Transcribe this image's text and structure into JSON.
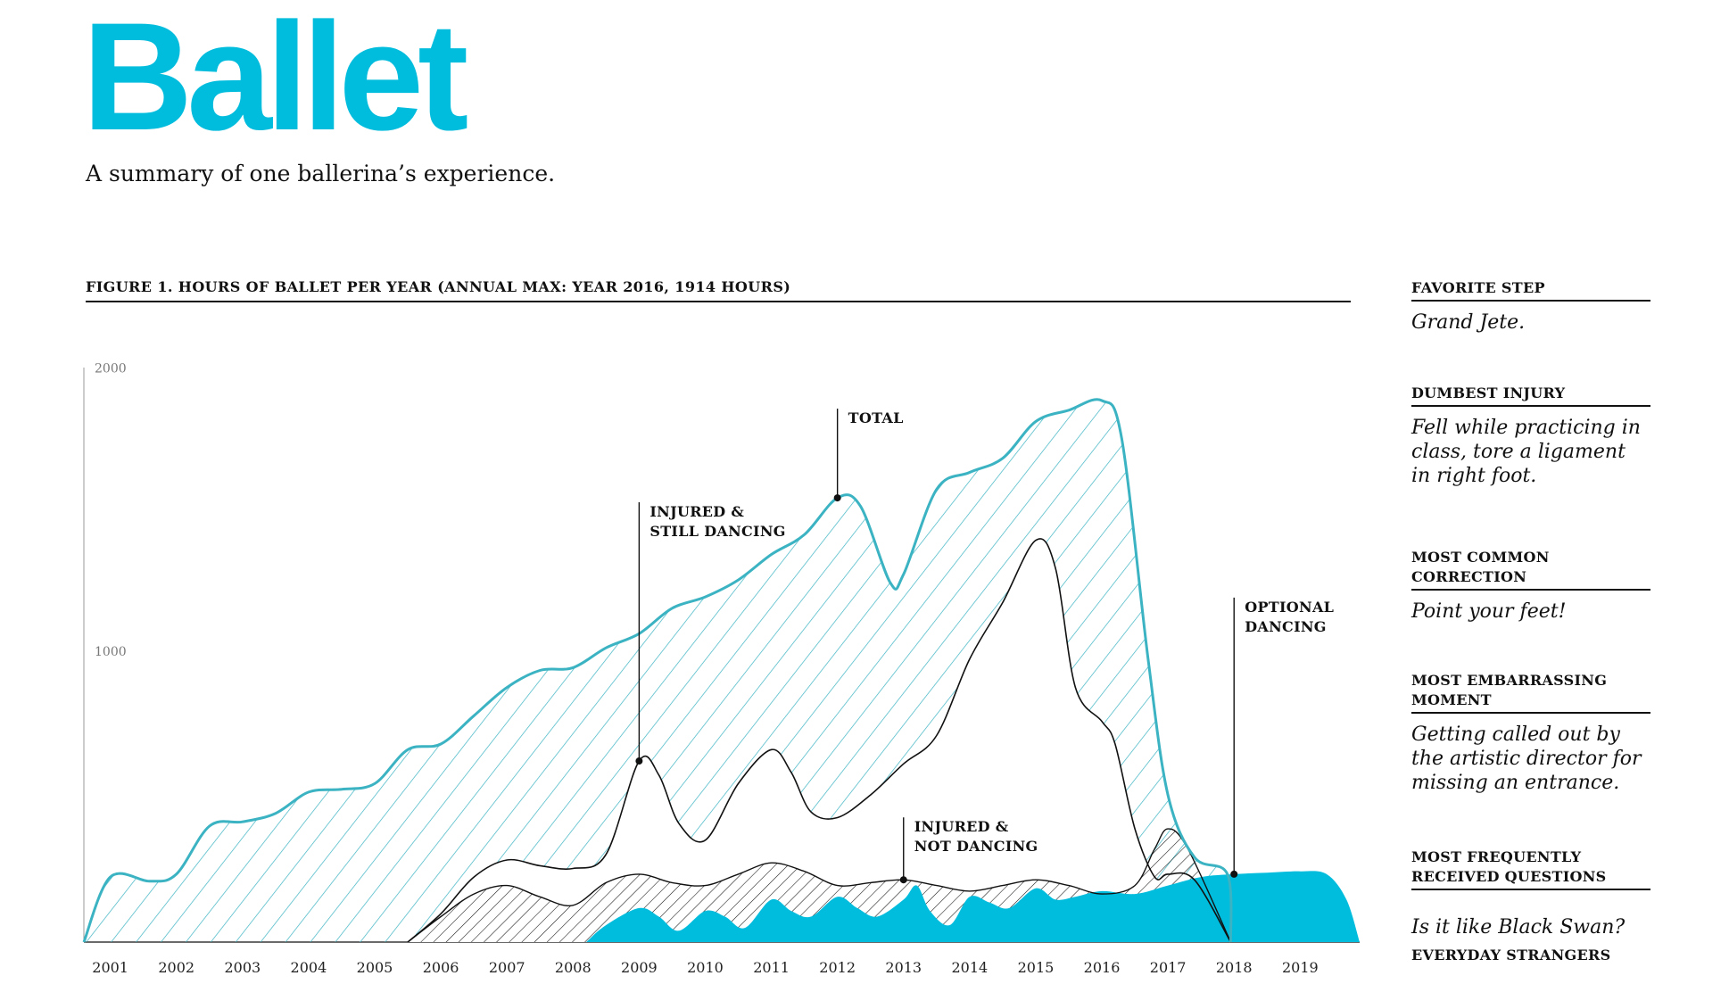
{
  "header": {
    "title": "Ballet",
    "subtitle": "A summary of one ballerina’s experience."
  },
  "figure": {
    "title": "FIGURE 1. HOURS OF BALLET PER YEAR (ANNUAL MAX: YEAR 2016, 1914 HOURS)"
  },
  "colors": {
    "accent": "#00bcdd",
    "total_line": "#3bb3c2",
    "ink": "#111111"
  },
  "chart_data": {
    "type": "area",
    "title": "FIGURE 1. HOURS OF BALLET PER YEAR (ANNUAL MAX: YEAR 2016, 1914 HOURS)",
    "x_ticks": [
      "2001",
      "2002",
      "2003",
      "2004",
      "2005",
      "2006",
      "2007",
      "2008",
      "2009",
      "2010",
      "2011",
      "2012",
      "2013",
      "2014",
      "2015",
      "2016",
      "2017",
      "2018",
      "2019"
    ],
    "y_ticks": [
      {
        "value": 1000,
        "label": "1000"
      },
      {
        "value": 2000,
        "label": "2000"
      }
    ],
    "ylim": [
      0,
      2100
    ],
    "xlim": [
      2000.6,
      2019.9
    ],
    "series": [
      {
        "name": "TOTAL",
        "style": "hatched-area",
        "points": [
          [
            2000.6,
            0
          ],
          [
            2001,
            230
          ],
          [
            2001.6,
            215
          ],
          [
            2002,
            240
          ],
          [
            2002.5,
            410
          ],
          [
            2003,
            425
          ],
          [
            2003.5,
            455
          ],
          [
            2004,
            530
          ],
          [
            2004.5,
            540
          ],
          [
            2005,
            560
          ],
          [
            2005.5,
            680
          ],
          [
            2006,
            700
          ],
          [
            2006.5,
            800
          ],
          [
            2007,
            900
          ],
          [
            2007.5,
            960
          ],
          [
            2008,
            970
          ],
          [
            2008.5,
            1040
          ],
          [
            2009,
            1090
          ],
          [
            2009.5,
            1180
          ],
          [
            2010,
            1220
          ],
          [
            2010.5,
            1280
          ],
          [
            2011,
            1370
          ],
          [
            2011.5,
            1440
          ],
          [
            2012,
            1570
          ],
          [
            2012.35,
            1540
          ],
          [
            2012.8,
            1270
          ],
          [
            2013,
            1300
          ],
          [
            2013.5,
            1600
          ],
          [
            2014,
            1660
          ],
          [
            2014.5,
            1710
          ],
          [
            2015,
            1840
          ],
          [
            2015.5,
            1880
          ],
          [
            2016,
            1914
          ],
          [
            2016.3,
            1780
          ],
          [
            2016.7,
            1000
          ],
          [
            2017,
            520
          ],
          [
            2017.4,
            300
          ],
          [
            2017.9,
            240
          ],
          [
            2017.95,
            0
          ]
        ]
      },
      {
        "name": "INJURED & STILL DANCING",
        "style": "line",
        "points": [
          [
            2005.5,
            0
          ],
          [
            2006,
            100
          ],
          [
            2006.5,
            230
          ],
          [
            2007,
            290
          ],
          [
            2007.5,
            270
          ],
          [
            2008,
            260
          ],
          [
            2008.5,
            310
          ],
          [
            2009,
            640
          ],
          [
            2009.3,
            590
          ],
          [
            2009.6,
            420
          ],
          [
            2010,
            360
          ],
          [
            2010.5,
            560
          ],
          [
            2011,
            680
          ],
          [
            2011.3,
            600
          ],
          [
            2011.6,
            460
          ],
          [
            2012,
            440
          ],
          [
            2012.5,
            520
          ],
          [
            2013,
            630
          ],
          [
            2013.5,
            730
          ],
          [
            2014,
            1000
          ],
          [
            2014.5,
            1200
          ],
          [
            2015,
            1420
          ],
          [
            2015.3,
            1320
          ],
          [
            2015.6,
            900
          ],
          [
            2016,
            780
          ],
          [
            2016.2,
            700
          ],
          [
            2016.5,
            400
          ],
          [
            2016.8,
            230
          ],
          [
            2017,
            240
          ],
          [
            2017.4,
            220
          ],
          [
            2017.95,
            0
          ]
        ]
      },
      {
        "name": "INJURED & NOT DANCING",
        "style": "diagonal-hatch",
        "points": [
          [
            2005.5,
            0
          ],
          [
            2006,
            90
          ],
          [
            2006.5,
            170
          ],
          [
            2007,
            200
          ],
          [
            2007.5,
            160
          ],
          [
            2008,
            130
          ],
          [
            2008.5,
            210
          ],
          [
            2009,
            240
          ],
          [
            2009.5,
            210
          ],
          [
            2010,
            200
          ],
          [
            2010.5,
            240
          ],
          [
            2011,
            280
          ],
          [
            2011.5,
            250
          ],
          [
            2012,
            200
          ],
          [
            2012.5,
            210
          ],
          [
            2013,
            220
          ],
          [
            2013.5,
            200
          ],
          [
            2014,
            180
          ],
          [
            2014.5,
            200
          ],
          [
            2015,
            220
          ],
          [
            2015.5,
            200
          ],
          [
            2016,
            170
          ],
          [
            2016.5,
            200
          ],
          [
            2016.8,
            330
          ],
          [
            2017,
            400
          ],
          [
            2017.3,
            330
          ],
          [
            2017.95,
            0
          ]
        ]
      },
      {
        "name": "OPTIONAL DANCING",
        "style": "solid-area",
        "points": [
          [
            2008.2,
            0
          ],
          [
            2008.5,
            60
          ],
          [
            2009,
            120
          ],
          [
            2009.3,
            90
          ],
          [
            2009.6,
            40
          ],
          [
            2010,
            110
          ],
          [
            2010.3,
            90
          ],
          [
            2010.6,
            50
          ],
          [
            2011,
            150
          ],
          [
            2011.3,
            110
          ],
          [
            2011.6,
            90
          ],
          [
            2012,
            160
          ],
          [
            2012.3,
            120
          ],
          [
            2012.6,
            90
          ],
          [
            2013,
            150
          ],
          [
            2013.2,
            200
          ],
          [
            2013.4,
            110
          ],
          [
            2013.7,
            60
          ],
          [
            2014,
            160
          ],
          [
            2014.3,
            140
          ],
          [
            2014.6,
            120
          ],
          [
            2015,
            190
          ],
          [
            2015.3,
            150
          ],
          [
            2015.6,
            160
          ],
          [
            2016,
            180
          ],
          [
            2016.5,
            170
          ],
          [
            2017,
            200
          ],
          [
            2017.5,
            230
          ],
          [
            2018,
            240
          ],
          [
            2018.5,
            245
          ],
          [
            2019,
            250
          ],
          [
            2019.4,
            240
          ],
          [
            2019.7,
            150
          ],
          [
            2019.9,
            0
          ]
        ]
      }
    ],
    "annotations": [
      {
        "label": "TOTAL",
        "text_lines": [
          "TOTAL"
        ],
        "x": 2012,
        "y": 1570
      },
      {
        "label": "INJURED & STILL DANCING",
        "text_lines": [
          "INJURED &",
          "STILL DANCING"
        ],
        "x": 2009,
        "y": 640
      },
      {
        "label": "INJURED & NOT DANCING",
        "text_lines": [
          "INJURED &",
          "NOT DANCING"
        ],
        "x": 2013,
        "y": 220
      },
      {
        "label": "OPTIONAL DANCING",
        "text_lines": [
          "OPTIONAL",
          "DANCING"
        ],
        "x": 2018,
        "y": 240
      }
    ],
    "grid": false,
    "legend": "none"
  },
  "sidebar": {
    "items": [
      {
        "heading": [
          "FAVORITE STEP"
        ],
        "answer": [
          "Grand Jete."
        ]
      },
      {
        "heading": [
          "DUMBEST INJURY"
        ],
        "answer": [
          "Fell while practicing in",
          "class, tore a ligament",
          "in right foot."
        ]
      },
      {
        "heading": [
          "MOST COMMON",
          "CORRECTION"
        ],
        "answer": [
          "Point your feet!"
        ]
      },
      {
        "heading": [
          "MOST EMBARRASSING",
          "MOMENT"
        ],
        "answer": [
          "Getting called out by",
          "the artistic director for",
          "missing an entrance."
        ]
      },
      {
        "heading": [
          "MOST FREQUENTLY",
          "RECEIVED QUESTIONS"
        ],
        "answer": [
          "Is it like Black Swan?"
        ],
        "note": "EVERYDAY STRANGERS"
      }
    ]
  }
}
